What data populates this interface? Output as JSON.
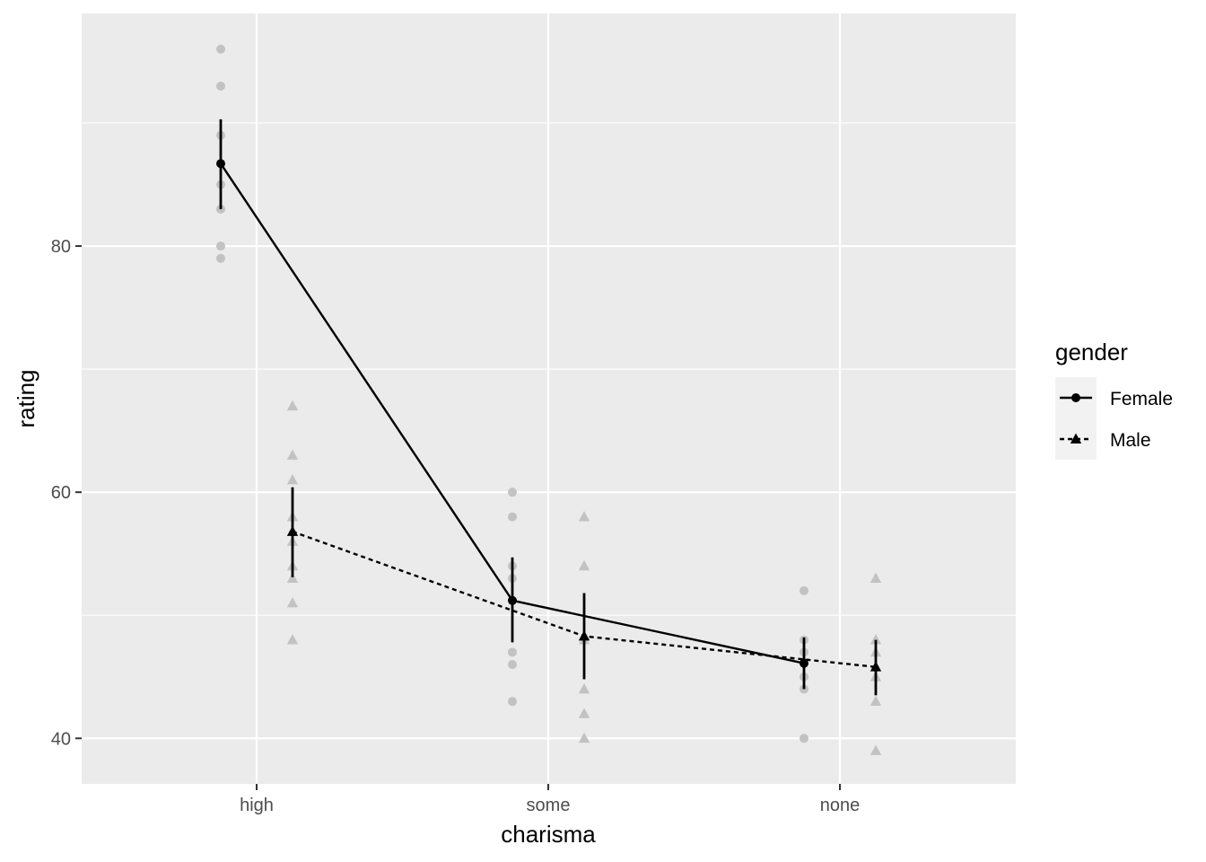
{
  "chart_data": {
    "type": "line",
    "xlabel": "charisma",
    "ylabel": "rating",
    "categories": [
      "high",
      "some",
      "none"
    ],
    "ylim": [
      36.3,
      98.9
    ],
    "yticks": [
      40,
      60,
      80
    ],
    "grid": true,
    "legend": {
      "title": "gender",
      "placement": "right"
    },
    "series": [
      {
        "name": "Female",
        "marker": "circle",
        "linetype": "solid",
        "means": [
          86.7,
          51.2,
          46.1
        ],
        "error_low": [
          83.0,
          47.8,
          44.0
        ],
        "error_high": [
          90.3,
          54.7,
          48.2
        ],
        "raw": [
          [
            96,
            93,
            89,
            85,
            83,
            80,
            79
          ],
          [
            60,
            58,
            54,
            53,
            47,
            46,
            43
          ],
          [
            52,
            48,
            47,
            45,
            44,
            40
          ]
        ]
      },
      {
        "name": "Male",
        "marker": "triangle",
        "linetype": "dashed",
        "means": [
          56.8,
          48.3,
          45.8
        ],
        "error_low": [
          53.1,
          44.8,
          43.5
        ],
        "error_high": [
          60.4,
          51.8,
          48.0
        ],
        "raw": [
          [
            67,
            63,
            61,
            58,
            56,
            54,
            53,
            51,
            48
          ],
          [
            58,
            54,
            48,
            44,
            42,
            40
          ],
          [
            53,
            48,
            47,
            45,
            43,
            39
          ]
        ]
      }
    ],
    "colors": {
      "panel_bg": "#ebebeb",
      "grid": "#ffffff",
      "raw_points": "#c2c2c2",
      "summary": "#000000",
      "legend_key_bg": "#f2f2f2"
    }
  }
}
